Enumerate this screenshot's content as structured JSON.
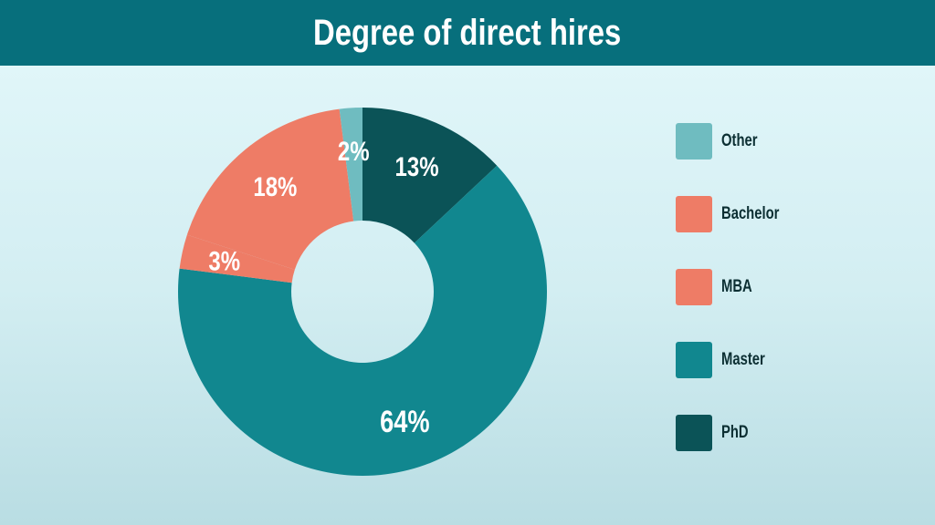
{
  "title": "Degree of direct hires",
  "colors": {
    "Other": "#6fbcc0",
    "Bachelor": "#ee7c66",
    "MBA": "#ee7c66",
    "Master": "#11878f",
    "PhD": "#0b5357"
  },
  "chart_data": {
    "type": "pie",
    "style": "donut",
    "title": "Degree of direct hires",
    "slices": [
      {
        "name": "PhD",
        "value": 13,
        "label": "13%"
      },
      {
        "name": "Master",
        "value": 64,
        "label": "64%"
      },
      {
        "name": "MBA",
        "value": 3,
        "label": "3%"
      },
      {
        "name": "Bachelor",
        "value": 18,
        "label": "18%"
      },
      {
        "name": "Other",
        "value": 2,
        "label": "2%"
      }
    ],
    "legend": {
      "placement": "right",
      "entries": [
        "Other",
        "Bachelor",
        "MBA",
        "Master",
        "PhD"
      ]
    }
  }
}
